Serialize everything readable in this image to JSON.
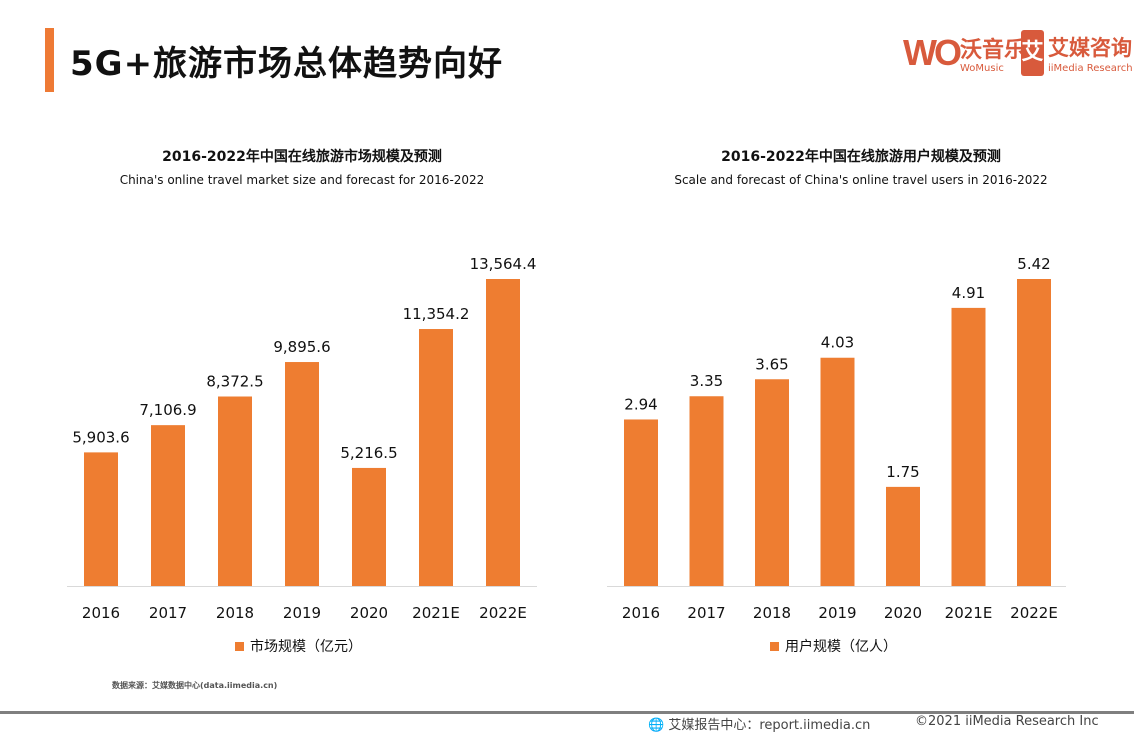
{
  "header": {
    "title": "5G+旅游市场总体趋势向好",
    "logos": {
      "womusic_mark": "WO",
      "womusic_cn": "沃音乐",
      "womusic_en": "WoMusic",
      "iimedia_mark": "艾",
      "iimedia_cn": "艾媒咨询",
      "iimedia_en": "iiMedia Research"
    }
  },
  "accent_color": "#ee7a35",
  "chart_data": [
    {
      "type": "bar",
      "title": "2016-2022年中国在线旅游市场规模及预测",
      "subtitle": "China's online travel market size and forecast for 2016-2022",
      "categories": [
        "2016",
        "2017",
        "2018",
        "2019",
        "2020",
        "2021E",
        "2022E"
      ],
      "series": [
        {
          "name": "市场规模（亿元）",
          "values": [
            5903.6,
            7106.9,
            8372.5,
            9895.6,
            5216.5,
            11354.2,
            13564.4
          ]
        }
      ],
      "data_labels": [
        "5,903.6",
        "7,106.9",
        "8,372.5",
        "9,895.6",
        "5,216.5",
        "11,354.2",
        "13,564.4"
      ],
      "color": "#ee7d31",
      "grid": false,
      "legend": "bottom"
    },
    {
      "type": "bar",
      "title": "2016-2022年中国在线旅游用户规模及预测",
      "subtitle": "Scale and forecast of China's online travel users in 2016-2022",
      "categories": [
        "2016",
        "2017",
        "2018",
        "2019",
        "2020",
        "2021E",
        "2022E"
      ],
      "series": [
        {
          "name": "用户规模（亿人）",
          "values": [
            2.94,
            3.35,
            3.65,
            4.03,
            1.75,
            4.91,
            5.42
          ]
        }
      ],
      "data_labels": [
        "2.94",
        "3.35",
        "3.65",
        "4.03",
        "1.75",
        "4.91",
        "5.42"
      ],
      "color": "#ee7d31",
      "grid": false,
      "legend": "bottom"
    }
  ],
  "footer": {
    "source": "数据来源：艾媒数据中心(data.iimedia.cn)",
    "site": "艾媒报告中心：report.iimedia.cn",
    "copyright": "©2021  iiMedia Research  Inc"
  }
}
